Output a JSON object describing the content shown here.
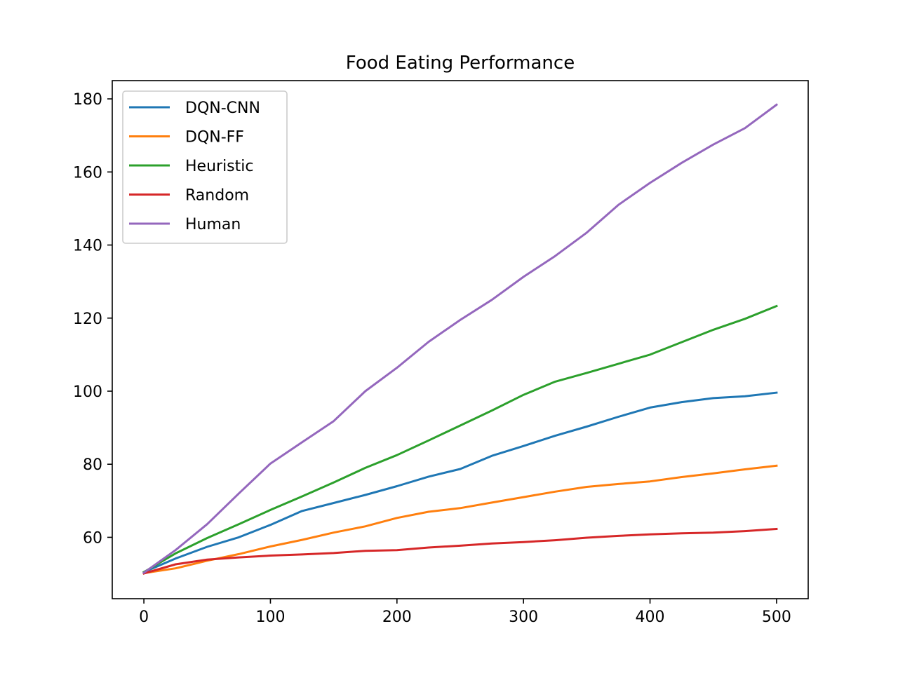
{
  "chart_data": {
    "type": "line",
    "title": "Food Eating Performance",
    "xlabel": "",
    "ylabel": "",
    "xlim": [
      -25,
      525
    ],
    "ylim": [
      43.2,
      185
    ],
    "xticks": [
      0,
      100,
      200,
      300,
      400,
      500
    ],
    "yticks": [
      60,
      80,
      100,
      120,
      140,
      160,
      180
    ],
    "grid": false,
    "legend_position": "top-left",
    "series": [
      {
        "name": "DQN-CNN",
        "color": "#1f77b4",
        "x": [
          0,
          25,
          50,
          75,
          100,
          125,
          150,
          175,
          200,
          225,
          250,
          275,
          300,
          325,
          350,
          375,
          400,
          425,
          450,
          475,
          500
        ],
        "values": [
          50.5,
          54.2,
          57.4,
          60.0,
          63.4,
          67.2,
          69.4,
          71.6,
          74.0,
          76.6,
          78.7,
          82.3,
          85.0,
          87.8,
          90.3,
          93.0,
          95.5,
          97.0,
          98.1,
          98.6,
          99.6
        ]
      },
      {
        "name": "DQN-FF",
        "color": "#ff7f0e",
        "x": [
          0,
          25,
          50,
          75,
          100,
          125,
          150,
          175,
          200,
          225,
          250,
          275,
          300,
          325,
          350,
          375,
          400,
          425,
          450,
          475,
          500
        ],
        "values": [
          50.2,
          51.5,
          53.6,
          55.4,
          57.5,
          59.3,
          61.3,
          63.0,
          65.3,
          67.0,
          68.0,
          69.5,
          71.0,
          72.5,
          73.8,
          74.6,
          75.3,
          76.5,
          77.5,
          78.6,
          79.6
        ]
      },
      {
        "name": "Heuristic",
        "color": "#2ca02c",
        "x": [
          0,
          25,
          50,
          75,
          100,
          125,
          150,
          175,
          200,
          225,
          250,
          275,
          300,
          325,
          350,
          375,
          400,
          425,
          450,
          475,
          500
        ],
        "values": [
          50.5,
          55.6,
          59.8,
          63.6,
          67.5,
          71.2,
          75.0,
          79.0,
          82.5,
          86.5,
          90.6,
          94.7,
          99.0,
          102.6,
          105.0,
          107.5,
          110.0,
          113.4,
          116.8,
          119.8,
          123.3
        ]
      },
      {
        "name": "Random",
        "color": "#d62728",
        "x": [
          0,
          25,
          50,
          75,
          100,
          125,
          150,
          175,
          200,
          225,
          250,
          275,
          300,
          325,
          350,
          375,
          400,
          425,
          450,
          475,
          500
        ],
        "values": [
          50.1,
          52.6,
          53.9,
          54.5,
          55.0,
          55.3,
          55.7,
          56.3,
          56.5,
          57.2,
          57.7,
          58.3,
          58.7,
          59.2,
          59.9,
          60.4,
          60.8,
          61.1,
          61.3,
          61.7,
          62.3
        ]
      },
      {
        "name": "Human",
        "color": "#9467bd",
        "x": [
          0,
          25,
          50,
          75,
          100,
          125,
          150,
          175,
          200,
          225,
          250,
          275,
          300,
          325,
          350,
          375,
          400,
          425,
          450,
          475,
          500
        ],
        "values": [
          50.3,
          56.5,
          63.6,
          72.0,
          80.2,
          86.0,
          91.8,
          100.0,
          106.4,
          113.5,
          119.5,
          125.0,
          131.3,
          137.0,
          143.4,
          151.0,
          157.0,
          162.5,
          167.5,
          172.0,
          178.4
        ]
      }
    ]
  }
}
